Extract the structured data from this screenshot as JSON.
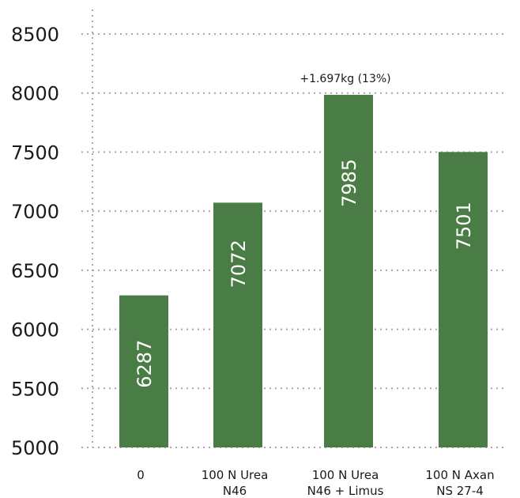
{
  "chart_data": {
    "type": "bar",
    "categories": [
      [
        "0"
      ],
      [
        "100 N Urea",
        "N46"
      ],
      [
        "100 N Urea",
        "N46 + Limus"
      ],
      [
        "100 N Axan",
        "NS 27-4"
      ]
    ],
    "values": [
      6287,
      7072,
      7985,
      7501
    ],
    "bar_labels": [
      "6287",
      "7072",
      "7985",
      "7501"
    ],
    "ylim": [
      5000,
      8500
    ],
    "yticks": [
      5000,
      5500,
      6000,
      6500,
      7000,
      7500,
      8000,
      8500
    ],
    "annotation": {
      "text": "+1.697kg (13%)",
      "bar_index": 2
    },
    "grid": true,
    "bar_color": "#4a7c45",
    "grid_color": "#a8a8a8"
  }
}
